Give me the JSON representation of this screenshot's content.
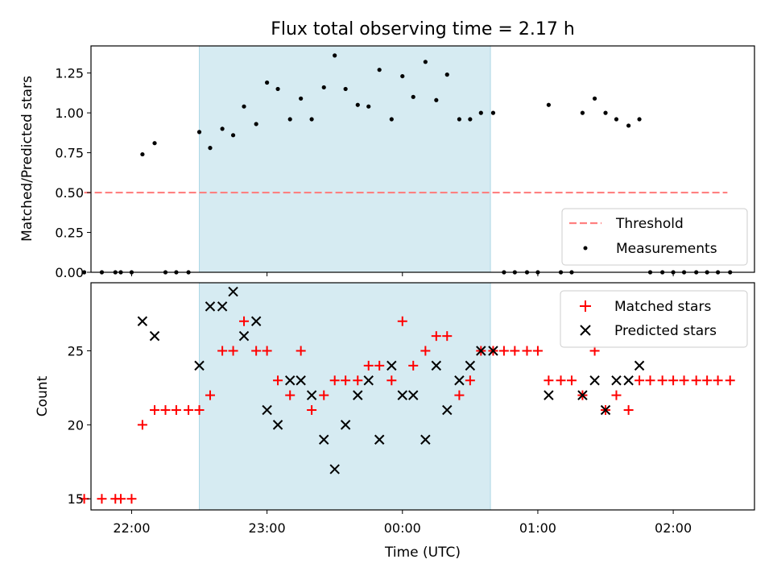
{
  "title": "Flux total observing time = 2.17 h",
  "chart_data": [
    {
      "type": "scatter",
      "title": "Flux total observing time = 2.17 h",
      "xlabel": "",
      "ylabel": "Matched/Predicted stars",
      "x_unit": "hours relative to 00:00 UTC",
      "xlim": [
        -2.3,
        2.6
      ],
      "ylim": [
        0,
        1.42
      ],
      "yticks": [
        0.0,
        0.25,
        0.5,
        0.75,
        1.0,
        1.25
      ],
      "ytick_labels": [
        "0.00",
        "0.25",
        "0.50",
        "0.75",
        "1.00",
        "1.25"
      ],
      "shaded_region": {
        "x": [
          -1.5,
          0.65
        ],
        "color": "#add8e6"
      },
      "legend": {
        "position": "lower-right",
        "entries": [
          {
            "label": "Threshold",
            "marker": "dashed-line",
            "color": "#ff8080"
          },
          {
            "label": "Measurements",
            "marker": "dot",
            "color": "#000000"
          }
        ]
      },
      "series": [
        {
          "name": "Threshold",
          "kind": "line",
          "style": "dashed",
          "color": "#ff8080",
          "x": [
            -2.35,
            2.4
          ],
          "y": [
            0.5,
            0.5
          ]
        },
        {
          "name": "Measurements",
          "kind": "scatter",
          "color": "#000000",
          "points": [
            [
              -2.35,
              0.0
            ],
            [
              -2.22,
              0.0
            ],
            [
              -2.12,
              0.0
            ],
            [
              -2.08,
              0.0
            ],
            [
              -2.0,
              0.0
            ],
            [
              -1.92,
              0.74
            ],
            [
              -1.83,
              0.81
            ],
            [
              -1.75,
              0.0
            ],
            [
              -1.67,
              0.0
            ],
            [
              -1.58,
              0.0
            ],
            [
              -1.5,
              0.88
            ],
            [
              -1.42,
              0.78
            ],
            [
              -1.33,
              0.9
            ],
            [
              -1.25,
              0.86
            ],
            [
              -1.17,
              1.04
            ],
            [
              -1.08,
              0.93
            ],
            [
              -1.0,
              1.19
            ],
            [
              -0.92,
              1.15
            ],
            [
              -0.83,
              0.96
            ],
            [
              -0.75,
              1.09
            ],
            [
              -0.67,
              0.96
            ],
            [
              -0.58,
              1.16
            ],
            [
              -0.5,
              1.36
            ],
            [
              -0.42,
              1.15
            ],
            [
              -0.33,
              1.05
            ],
            [
              -0.25,
              1.04
            ],
            [
              -0.17,
              1.27
            ],
            [
              -0.08,
              0.96
            ],
            [
              0.0,
              1.23
            ],
            [
              0.08,
              1.1
            ],
            [
              0.17,
              1.32
            ],
            [
              0.25,
              1.08
            ],
            [
              0.33,
              1.24
            ],
            [
              0.42,
              0.96
            ],
            [
              0.5,
              0.96
            ],
            [
              0.58,
              1.0
            ],
            [
              0.67,
              1.0
            ],
            [
              0.75,
              0.0
            ],
            [
              0.83,
              0.0
            ],
            [
              0.92,
              0.0
            ],
            [
              1.0,
              0.0
            ],
            [
              1.17,
              0.0
            ],
            [
              1.25,
              0.0
            ],
            [
              1.08,
              1.05
            ],
            [
              1.33,
              1.0
            ],
            [
              1.42,
              1.09
            ],
            [
              1.5,
              1.0
            ],
            [
              1.58,
              0.96
            ],
            [
              1.67,
              0.92
            ],
            [
              1.75,
              0.96
            ],
            [
              1.83,
              0.0
            ],
            [
              1.92,
              0.0
            ],
            [
              2.0,
              0.0
            ],
            [
              2.08,
              0.0
            ],
            [
              2.17,
              0.0
            ],
            [
              2.25,
              0.0
            ],
            [
              2.33,
              0.0
            ],
            [
              2.42,
              0.0
            ]
          ]
        }
      ]
    },
    {
      "type": "scatter",
      "title": "",
      "xlabel": "Time (UTC)",
      "ylabel": "Count",
      "x_unit": "hours relative to 00:00 UTC",
      "xlim": [
        -2.3,
        2.6
      ],
      "ylim": [
        14.25,
        29.6
      ],
      "xticks": [
        -2,
        -1,
        0,
        1,
        2
      ],
      "xtick_labels": [
        "22:00",
        "23:00",
        "00:00",
        "01:00",
        "02:00"
      ],
      "yticks": [
        15,
        20,
        25
      ],
      "ytick_labels": [
        "15",
        "20",
        "25"
      ],
      "shaded_region": {
        "x": [
          -1.5,
          0.65
        ],
        "color": "#add8e6"
      },
      "legend": {
        "position": "top-right",
        "entries": [
          {
            "label": "Matched stars",
            "marker": "plus",
            "color": "#ff0000"
          },
          {
            "label": "Predicted stars",
            "marker": "x",
            "color": "#000000"
          }
        ]
      },
      "series": [
        {
          "name": "Matched stars",
          "kind": "scatter",
          "marker": "plus",
          "color": "#ff0000",
          "points": [
            [
              -2.35,
              15
            ],
            [
              -2.22,
              15
            ],
            [
              -2.12,
              15
            ],
            [
              -2.08,
              15
            ],
            [
              -2.0,
              15
            ],
            [
              -1.92,
              20
            ],
            [
              -1.83,
              21
            ],
            [
              -1.75,
              21
            ],
            [
              -1.67,
              21
            ],
            [
              -1.58,
              21
            ],
            [
              -1.5,
              21
            ],
            [
              -1.42,
              22
            ],
            [
              -1.33,
              25
            ],
            [
              -1.25,
              25
            ],
            [
              -1.17,
              27
            ],
            [
              -1.08,
              25
            ],
            [
              -1.0,
              25
            ],
            [
              -0.92,
              23
            ],
            [
              -0.83,
              22
            ],
            [
              -0.75,
              25
            ],
            [
              -0.67,
              21
            ],
            [
              -0.58,
              22
            ],
            [
              -0.5,
              23
            ],
            [
              -0.42,
              23
            ],
            [
              -0.33,
              23
            ],
            [
              -0.25,
              24
            ],
            [
              -0.17,
              24
            ],
            [
              -0.08,
              23
            ],
            [
              0.0,
              27
            ],
            [
              0.08,
              24
            ],
            [
              0.17,
              25
            ],
            [
              0.25,
              26
            ],
            [
              0.33,
              26
            ],
            [
              0.42,
              22
            ],
            [
              0.5,
              23
            ],
            [
              0.58,
              25
            ],
            [
              0.67,
              25
            ],
            [
              0.75,
              25
            ],
            [
              0.83,
              25
            ],
            [
              0.92,
              25
            ],
            [
              1.0,
              25
            ],
            [
              1.08,
              23
            ],
            [
              1.17,
              23
            ],
            [
              1.25,
              23
            ],
            [
              1.33,
              22
            ],
            [
              1.42,
              25
            ],
            [
              1.5,
              21
            ],
            [
              1.58,
              22
            ],
            [
              1.67,
              21
            ],
            [
              1.75,
              23
            ],
            [
              1.83,
              23
            ],
            [
              1.92,
              23
            ],
            [
              2.0,
              23
            ],
            [
              2.08,
              23
            ],
            [
              2.17,
              23
            ],
            [
              2.25,
              23
            ],
            [
              2.33,
              23
            ],
            [
              2.42,
              23
            ]
          ]
        },
        {
          "name": "Predicted stars",
          "kind": "scatter",
          "marker": "x",
          "color": "#000000",
          "points": [
            [
              -1.92,
              27
            ],
            [
              -1.83,
              26
            ],
            [
              -1.5,
              24
            ],
            [
              -1.42,
              28
            ],
            [
              -1.33,
              28
            ],
            [
              -1.25,
              29
            ],
            [
              -1.17,
              26
            ],
            [
              -1.08,
              27
            ],
            [
              -1.0,
              21
            ],
            [
              -0.92,
              20
            ],
            [
              -0.83,
              23
            ],
            [
              -0.75,
              23
            ],
            [
              -0.67,
              22
            ],
            [
              -0.58,
              19
            ],
            [
              -0.5,
              17
            ],
            [
              -0.42,
              20
            ],
            [
              -0.33,
              22
            ],
            [
              -0.25,
              23
            ],
            [
              -0.17,
              19
            ],
            [
              -0.08,
              24
            ],
            [
              0.0,
              22
            ],
            [
              0.08,
              22
            ],
            [
              0.17,
              19
            ],
            [
              0.25,
              24
            ],
            [
              0.33,
              21
            ],
            [
              0.42,
              23
            ],
            [
              0.5,
              24
            ],
            [
              0.58,
              25
            ],
            [
              0.67,
              25
            ],
            [
              1.08,
              22
            ],
            [
              1.33,
              22
            ],
            [
              1.42,
              23
            ],
            [
              1.5,
              21
            ],
            [
              1.58,
              23
            ],
            [
              1.67,
              23
            ],
            [
              1.75,
              24
            ]
          ]
        }
      ]
    }
  ]
}
